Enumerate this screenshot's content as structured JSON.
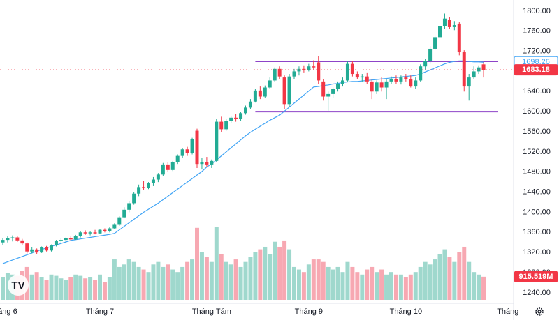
{
  "chart_data": {
    "type": "candlestick",
    "categories": [
      null,
      "áng 6",
      null,
      null,
      null,
      null,
      null,
      null,
      null,
      null,
      null,
      null,
      null,
      null,
      null,
      null,
      null,
      null,
      null,
      null,
      "Tháng 7",
      null,
      null,
      null,
      null,
      null,
      null,
      null,
      null,
      null,
      null,
      null,
      null,
      null,
      null,
      null,
      null,
      null,
      null,
      null,
      null,
      null,
      null,
      "Tháng Tám",
      null,
      null,
      null,
      null,
      null,
      null,
      null,
      null,
      null,
      null,
      null,
      null,
      null,
      null,
      null,
      null,
      null,
      null,
      null,
      "Tháng 9",
      null,
      null,
      null,
      null,
      null,
      null,
      null,
      null,
      null,
      null,
      null,
      null,
      null,
      null,
      null,
      null,
      null,
      null,
      null,
      "Tháng 10",
      null,
      null,
      null,
      null,
      null,
      null,
      null,
      null,
      null,
      null,
      null,
      null,
      null,
      null,
      null,
      null,
      null,
      null,
      null,
      null,
      "Tháng"
    ],
    "open": [
      1340,
      1345,
      1348,
      1350,
      1344,
      1338,
      1322,
      1326,
      1320,
      1330,
      1324,
      1334,
      1343,
      1345,
      1348,
      1346,
      1353,
      1360,
      1358,
      1360,
      1358,
      1365,
      1363,
      1368,
      1375,
      1390,
      1405,
      1418,
      1437,
      1450,
      1448,
      1458,
      1465,
      1475,
      1495,
      1484,
      1500,
      1512,
      1525,
      1518,
      1562,
      1496,
      1500,
      1495,
      1502,
      1580,
      1565,
      1582,
      1588,
      1585,
      1597,
      1608,
      1620,
      1642,
      1630,
      1648,
      1662,
      1685,
      1668,
      1615,
      1670,
      1680,
      1685,
      1682,
      1690,
      1698,
      1660,
      1630,
      1635,
      1645,
      1655,
      1662,
      1695,
      1675,
      1668,
      1670,
      1660,
      1640,
      1658,
      1648,
      1660,
      1664,
      1660,
      1668,
      1664,
      1650,
      1662,
      1690,
      1700,
      1725,
      1748,
      1770,
      1782,
      1768,
      1775,
      1718,
      1650,
      1668,
      1680,
      1694,
      null,
      null,
      null,
      null,
      null
    ],
    "high": [
      1348,
      1352,
      1354,
      1352,
      1347,
      1340,
      1330,
      1328,
      1332,
      1333,
      1336,
      1345,
      1348,
      1350,
      1352,
      1355,
      1362,
      1364,
      1362,
      1365,
      1367,
      1368,
      1370,
      1378,
      1392,
      1410,
      1422,
      1440,
      1455,
      1462,
      1460,
      1470,
      1478,
      1498,
      1500,
      1502,
      1515,
      1528,
      1530,
      1548,
      1566,
      1508,
      1510,
      1505,
      1585,
      1590,
      1585,
      1592,
      1595,
      1600,
      1612,
      1625,
      1645,
      1650,
      1652,
      1668,
      1688,
      1690,
      1672,
      1675,
      1685,
      1690,
      1692,
      1695,
      1702,
      1710,
      1665,
      1640,
      1648,
      1660,
      1668,
      1700,
      1700,
      1680,
      1675,
      1678,
      1665,
      1662,
      1668,
      1665,
      1670,
      1672,
      1672,
      1675,
      1672,
      1668,
      1694,
      1705,
      1730,
      1752,
      1775,
      1795,
      1788,
      1780,
      1778,
      1722,
      1675,
      1690,
      1692,
      1698,
      null,
      null,
      null,
      null,
      null
    ],
    "low": [
      1335,
      1340,
      1342,
      1341,
      1335,
      1318,
      1318,
      1317,
      1319,
      1322,
      1322,
      1332,
      1338,
      1340,
      1344,
      1345,
      1350,
      1355,
      1354,
      1356,
      1357,
      1360,
      1360,
      1366,
      1373,
      1388,
      1400,
      1415,
      1432,
      1445,
      1446,
      1452,
      1460,
      1472,
      1480,
      1482,
      1496,
      1508,
      1512,
      1515,
      1488,
      1485,
      1490,
      1488,
      1500,
      1560,
      1562,
      1578,
      1580,
      1582,
      1594,
      1605,
      1618,
      1625,
      1628,
      1645,
      1660,
      1665,
      1605,
      1610,
      1665,
      1672,
      1678,
      1680,
      1684,
      1655,
      1622,
      1602,
      1628,
      1640,
      1650,
      1660,
      1670,
      1665,
      1660,
      1655,
      1625,
      1635,
      1640,
      1625,
      1655,
      1655,
      1654,
      1660,
      1648,
      1645,
      1660,
      1684,
      1695,
      1722,
      1745,
      1765,
      1765,
      1762,
      1712,
      1640,
      1622,
      1664,
      1675,
      1668,
      null,
      null,
      null,
      null,
      null
    ],
    "close": [
      1345,
      1348,
      1350,
      1344,
      1338,
      1322,
      1326,
      1320,
      1330,
      1324,
      1334,
      1343,
      1345,
      1348,
      1346,
      1353,
      1360,
      1358,
      1360,
      1358,
      1365,
      1363,
      1368,
      1375,
      1390,
      1405,
      1418,
      1437,
      1450,
      1448,
      1458,
      1465,
      1475,
      1495,
      1484,
      1500,
      1512,
      1525,
      1518,
      1545,
      1496,
      1500,
      1495,
      1502,
      1580,
      1565,
      1582,
      1588,
      1585,
      1597,
      1608,
      1620,
      1642,
      1630,
      1648,
      1662,
      1685,
      1670,
      1615,
      1670,
      1680,
      1685,
      1682,
      1690,
      1688,
      1662,
      1630,
      1635,
      1645,
      1655,
      1662,
      1695,
      1675,
      1668,
      1670,
      1660,
      1640,
      1658,
      1648,
      1660,
      1664,
      1660,
      1668,
      1664,
      1650,
      1662,
      1690,
      1700,
      1725,
      1748,
      1770,
      1785,
      1768,
      1772,
      1718,
      1650,
      1668,
      1680,
      1688,
      1683.18,
      null,
      null,
      null,
      null,
      null
    ],
    "volume": [
      900,
      1050,
      1000,
      950,
      1150,
      1300,
      1000,
      1100,
      900,
      800,
      1000,
      950,
      850,
      800,
      900,
      1000,
      950,
      850,
      900,
      800,
      1000,
      700,
      900,
      1600,
      1300,
      1400,
      1600,
      1500,
      1300,
      1200,
      1100,
      1400,
      1500,
      1300,
      1400,
      1200,
      1100,
      1300,
      1500,
      1600,
      2850,
      1900,
      1700,
      1500,
      2900,
      1800,
      1500,
      1400,
      1600,
      1300,
      1500,
      1700,
      1900,
      2000,
      2100,
      1800,
      2300,
      2100,
      2350,
      2000,
      1300,
      1200,
      1100,
      1400,
      1600,
      1600,
      1500,
      1300,
      1200,
      1300,
      1100,
      1500,
      1300,
      1100,
      1000,
      1200,
      1300,
      1100,
      1200,
      1000,
      1100,
      1000,
      1000,
      900,
      1000,
      1100,
      1300,
      1500,
      1400,
      1600,
      1800,
      2000,
      1700,
      1500,
      1900,
      2100,
      1500,
      1100,
      1000,
      915.519,
      null,
      null,
      null,
      null,
      null
    ],
    "volume_label": "915.519M",
    "ma": [
      1298,
      1301.5,
      1305,
      1308.5,
      1312,
      1315.5,
      1319,
      1322.5,
      1326,
      1329,
      1332,
      1335,
      1338,
      1341,
      1344,
      1345.5,
      1347,
      1348.5,
      1350,
      1351.5,
      1353,
      1354.5,
      1356,
      1358,
      1365,
      1372,
      1379,
      1386,
      1393,
      1400,
      1406,
      1412,
      1418,
      1425,
      1432,
      1439,
      1446,
      1453,
      1460,
      1467,
      1474,
      1481,
      1490,
      1496,
      1504,
      1512,
      1520,
      1528,
      1536,
      1544,
      1552,
      1559,
      1565,
      1571,
      1577,
      1583,
      1588,
      1593,
      1601,
      1609,
      1617,
      1625,
      1633,
      1641,
      1649,
      1650,
      1652,
      1653,
      1655,
      1656,
      1658,
      1659,
      1660,
      1660,
      1661,
      1662,
      1663,
      1664,
      1665,
      1666,
      1667,
      1668,
      1669,
      1670,
      1671,
      1672,
      1675,
      1679,
      1683,
      1687,
      1691,
      1695,
      1698,
      1700,
      1701,
      1701,
      1700,
      1699,
      1699,
      1698.26,
      null,
      null,
      null,
      null,
      null
    ],
    "up_color": "#22ab94",
    "down_color": "#f23645",
    "up_volume_color": "#9fd8cd",
    "down_volume_color": "#f7a8b2",
    "ma_color": "#42a5f5",
    "levels": [
      1700,
      1600
    ],
    "level_color": "#8e44c8",
    "level_start_index": 52,
    "level_end_index": 102,
    "ylim": [
      1219,
      1822
    ],
    "yticks": [
      {
        "value": 1240,
        "label": "1240.00"
      },
      {
        "value": 1280,
        "label": "1280.00"
      },
      {
        "value": 1320,
        "label": "1320.00"
      },
      {
        "value": 1360,
        "label": "1360.00"
      },
      {
        "value": 1400,
        "label": "1400.00"
      },
      {
        "value": 1440,
        "label": "1440.00"
      },
      {
        "value": 1480,
        "label": "1480.00"
      },
      {
        "value": 1520,
        "label": "1520.00"
      },
      {
        "value": 1560,
        "label": "1560.00"
      },
      {
        "value": 1600,
        "label": "1600.00"
      },
      {
        "value": 1640,
        "label": "1640.00"
      },
      {
        "value": 1680,
        "label": "1680.00"
      },
      {
        "value": 1720,
        "label": "1720.00"
      },
      {
        "value": 1760,
        "label": "1760.00"
      },
      {
        "value": 1800,
        "label": "1800.00"
      }
    ]
  }
}
